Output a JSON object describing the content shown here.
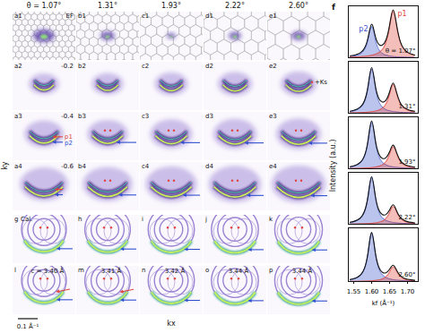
{
  "figure": {
    "column_titles": [
      "θ = 1.07°",
      "1.31°",
      "1.93°",
      "2.22°",
      "2.60°"
    ],
    "row_labels": [
      [
        "a1",
        "b1",
        "c1",
        "d1",
        "e1"
      ],
      [
        "a2",
        "b2",
        "c2",
        "d2",
        "e2"
      ],
      [
        "a3",
        "b3",
        "c3",
        "d3",
        "e3"
      ],
      [
        "a4",
        "b4",
        "c4",
        "d4",
        "e4"
      ],
      [
        "g",
        "h",
        "i",
        "j",
        "k"
      ],
      [
        "l",
        "m",
        "n",
        "o",
        "p"
      ]
    ],
    "energies": [
      "EF",
      "-0.2",
      "-0.4",
      "-0.6"
    ],
    "calc_label": "Cal.",
    "c_values": [
      "c = 3.40 Å",
      "3.41 Å",
      "3.42 Å",
      "3.44 Å",
      "3.44 Å"
    ],
    "band_labels": [
      "p1",
      "p2"
    ],
    "ks_label": "+Ks",
    "y_axis": "ky",
    "x_axis": "kx",
    "scale_bar": "0.1 Å⁻¹",
    "f_label": "f",
    "f_y_label": "Intensity (a.u.)"
  },
  "chart_data": [
    {
      "type": "area",
      "title": "θ = 1.07°",
      "tick_labels": false,
      "x": [
        1.54,
        1.55,
        1.56,
        1.57,
        1.58,
        1.59,
        1.6,
        1.61,
        1.62,
        1.63,
        1.64,
        1.65,
        1.66,
        1.67,
        1.68,
        1.69,
        1.7,
        1.71,
        1.72
      ],
      "xlim": [
        1.535,
        1.73
      ],
      "xticks": [
        1.55,
        {
          "value": 1.6,
          "label": "1.60"
        },
        1.65,
        {
          "value": 1.7,
          "label": "1.70"
        }
      ],
      "ylim": [
        0,
        1
      ],
      "series": [
        {
          "name": "p2",
          "color": "#3d55c8",
          "values": [
            0.023,
            0.032,
            0.05,
            0.083,
            0.159,
            0.354,
            0.6,
            0.354,
            0.159,
            0.083,
            0.05,
            0.032,
            0.023,
            0.017,
            0.013,
            0.011,
            0.008,
            0.007,
            0.006
          ]
        },
        {
          "name": "p1",
          "color": "#e0443c",
          "values": [
            0.012,
            0.014,
            0.017,
            0.022,
            0.027,
            0.034,
            0.047,
            0.066,
            0.098,
            0.161,
            0.296,
            0.596,
            0.9,
            0.596,
            0.296,
            0.161,
            0.098,
            0.066,
            0.047
          ]
        }
      ]
    },
    {
      "type": "area",
      "title": "1.31°",
      "tick_labels": false,
      "x": [
        1.54,
        1.55,
        1.56,
        1.57,
        1.58,
        1.59,
        1.6,
        1.61,
        1.62,
        1.63,
        1.64,
        1.65,
        1.66,
        1.67,
        1.68,
        1.69,
        1.7,
        1.71,
        1.72
      ],
      "xlim": [
        1.535,
        1.73
      ],
      "xticks": [
        1.55,
        {
          "value": 1.6,
          "label": "1.60"
        },
        1.65,
        {
          "value": 1.7,
          "label": "1.70"
        }
      ],
      "ylim": [
        0,
        1
      ],
      "series": [
        {
          "color": "#3d55c8",
          "values": [
            0.032,
            0.046,
            0.071,
            0.117,
            0.225,
            0.502,
            0.85,
            0.502,
            0.225,
            0.117,
            0.071,
            0.046,
            0.032,
            0.025,
            0.019,
            0.015,
            0.012,
            0.01,
            0.009
          ]
        },
        {
          "color": "#e0443c",
          "values": [
            0.007,
            0.009,
            0.01,
            0.013,
            0.017,
            0.021,
            0.029,
            0.04,
            0.06,
            0.098,
            0.181,
            0.364,
            0.55,
            0.364,
            0.181,
            0.098,
            0.06,
            0.04,
            0.029
          ]
        }
      ]
    },
    {
      "type": "area",
      "title": "1.93°",
      "tick_labels": false,
      "x": [
        1.54,
        1.55,
        1.56,
        1.57,
        1.58,
        1.59,
        1.6,
        1.61,
        1.62,
        1.63,
        1.64,
        1.65,
        1.66,
        1.67,
        1.68,
        1.69,
        1.7,
        1.71,
        1.72
      ],
      "xlim": [
        1.535,
        1.73
      ],
      "xticks": [
        1.55,
        {
          "value": 1.6,
          "label": "1.60"
        },
        1.65,
        {
          "value": 1.7,
          "label": "1.70"
        }
      ],
      "ylim": [
        0,
        1
      ],
      "series": [
        {
          "color": "#3d55c8",
          "values": [
            0.034,
            0.049,
            0.075,
            0.124,
            0.239,
            0.531,
            0.9,
            0.531,
            0.239,
            0.124,
            0.075,
            0.049,
            0.034,
            0.026,
            0.02,
            0.016,
            0.013,
            0.011,
            0.009
          ]
        },
        {
          "color": "#e0443c",
          "values": [
            0.005,
            0.007,
            0.008,
            0.01,
            0.013,
            0.016,
            0.022,
            0.031,
            0.046,
            0.075,
            0.138,
            0.278,
            0.42,
            0.278,
            0.138,
            0.075,
            0.046,
            0.031,
            0.022
          ]
        }
      ]
    },
    {
      "type": "area",
      "title": "2.22°",
      "tick_labels": false,
      "x": [
        1.54,
        1.55,
        1.56,
        1.57,
        1.58,
        1.59,
        1.6,
        1.61,
        1.62,
        1.63,
        1.64,
        1.65,
        1.66,
        1.67,
        1.68,
        1.69,
        1.7,
        1.71,
        1.72
      ],
      "xlim": [
        1.535,
        1.73
      ],
      "xticks": [
        1.55,
        {
          "value": 1.6,
          "label": "1.60"
        },
        1.65,
        {
          "value": 1.7,
          "label": "1.70"
        }
      ],
      "ylim": [
        0,
        1
      ],
      "series": [
        {
          "color": "#3d55c8",
          "values": [
            0.034,
            0.049,
            0.075,
            0.124,
            0.239,
            0.531,
            0.9,
            0.531,
            0.239,
            0.124,
            0.075,
            0.049,
            0.034,
            0.026,
            0.02,
            0.016,
            0.013,
            0.011,
            0.009
          ]
        },
        {
          "color": "#e0443c",
          "values": [
            0.004,
            0.005,
            0.006,
            0.008,
            0.01,
            0.013,
            0.018,
            0.025,
            0.037,
            0.061,
            0.112,
            0.225,
            0.34,
            0.225,
            0.112,
            0.061,
            0.037,
            0.025,
            0.018
          ]
        }
      ]
    },
    {
      "type": "area",
      "title": "2.60°",
      "tick_labels": "x",
      "x_label": "kf (Å⁻¹)",
      "x": [
        1.54,
        1.55,
        1.56,
        1.57,
        1.58,
        1.59,
        1.6,
        1.61,
        1.62,
        1.63,
        1.64,
        1.65,
        1.66,
        1.67,
        1.68,
        1.69,
        1.7,
        1.71,
        1.72
      ],
      "xlim": [
        1.535,
        1.73
      ],
      "xticks": [
        1.55,
        {
          "value": 1.6,
          "label": "1.60"
        },
        1.65,
        {
          "value": 1.7,
          "label": "1.70"
        }
      ],
      "ylim": [
        0,
        1
      ],
      "series": [
        {
          "color": "#3d55c8",
          "values": [
            0.034,
            0.049,
            0.075,
            0.124,
            0.239,
            0.531,
            0.9,
            0.531,
            0.239,
            0.124,
            0.075,
            0.049,
            0.034,
            0.026,
            0.02,
            0.016,
            0.013,
            0.011,
            0.009
          ]
        },
        {
          "color": "#e0443c",
          "values": [
            0.004,
            0.004,
            0.005,
            0.006,
            0.008,
            0.01,
            0.014,
            0.02,
            0.029,
            0.048,
            0.089,
            0.179,
            0.27,
            0.179,
            0.089,
            0.048,
            0.029,
            0.02,
            0.014
          ]
        }
      ]
    }
  ]
}
